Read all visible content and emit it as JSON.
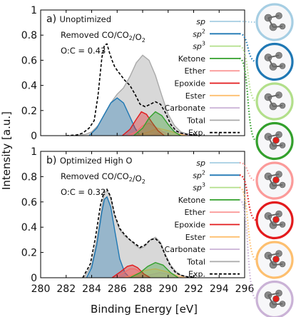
{
  "colors": {
    "sp": "#a6cee3",
    "sp2": "#1f78b4",
    "sp3": "#b2df8a",
    "ketone": "#33a02c",
    "ether": "#fb9a99",
    "epoxide": "#e31a1c",
    "ester": "#fdbf6f",
    "carbonate": "#cab2d6",
    "total": "#a9a9a9",
    "exp": "#000000"
  },
  "legend_labels": [
    "sp",
    "sp2",
    "sp3",
    "Ketone",
    "Ether",
    "Epoxide",
    "Ester",
    "Carbonate",
    "Total",
    "Exp."
  ],
  "chart_data": {
    "type": "area",
    "xlabel": "Binding Energy [eV]",
    "ylabel": "Intensity [a.u.]",
    "xlim": [
      280,
      296
    ],
    "xticks": [
      280,
      282,
      284,
      286,
      288,
      290,
      292,
      294,
      296
    ],
    "grid": false,
    "legend_position": "right",
    "panels": [
      {
        "id": "a",
        "annotation": [
          "a) Unoptimized",
          "Removed CO/CO2/O2",
          "O:C = 0.43"
        ],
        "ylim": [
          0,
          1
        ],
        "yticks": [
          0,
          0.2,
          0.4,
          0.6,
          0.8,
          1
        ],
        "series": [
          {
            "name": "sp2",
            "x": [
              283.8,
              284.4,
              285.0,
              285.5,
              286.0,
              286.5,
              287.0,
              287.4,
              287.8
            ],
            "y": [
              0.0,
              0.06,
              0.17,
              0.26,
              0.3,
              0.26,
              0.15,
              0.06,
              0.0
            ]
          },
          {
            "name": "Epoxide",
            "x": [
              286.4,
              287.0,
              287.5,
              287.9,
              288.3,
              288.7,
              289.2,
              289.7
            ],
            "y": [
              0.0,
              0.05,
              0.13,
              0.19,
              0.17,
              0.11,
              0.04,
              0.0
            ]
          },
          {
            "name": "Ketone",
            "x": [
              287.3,
              288.0,
              288.5,
              289.0,
              289.5,
              290.0,
              290.5,
              291.0
            ],
            "y": [
              0.0,
              0.06,
              0.14,
              0.19,
              0.16,
              0.09,
              0.03,
              0.0
            ]
          },
          {
            "name": "Ether",
            "x": [
              286.8,
              287.5,
              288.0,
              288.5,
              289.0,
              289.6,
              290.2
            ],
            "y": [
              0.0,
              0.03,
              0.08,
              0.1,
              0.07,
              0.03,
              0.0
            ]
          },
          {
            "name": "Ester",
            "x": [
              287.5,
              288.5,
              289.2,
              290.0,
              290.8,
              291.5
            ],
            "y": [
              0.0,
              0.03,
              0.06,
              0.04,
              0.015,
              0.0
            ]
          },
          {
            "name": "Carbonate",
            "x": [
              288.5,
              289.3,
              290.0,
              290.6,
              291.3,
              292.0
            ],
            "y": [
              0.0,
              0.02,
              0.04,
              0.03,
              0.01,
              0.0
            ]
          },
          {
            "name": "Total",
            "x": [
              282.6,
              283.5,
              284.0,
              284.5,
              285.0,
              285.5,
              286.0,
              286.5,
              287.0,
              287.5,
              288.0,
              288.5,
              289.0,
              289.5,
              290.0,
              290.5,
              291.0,
              291.5,
              292.0,
              292.5
            ],
            "y": [
              0.0,
              0.01,
              0.03,
              0.08,
              0.17,
              0.26,
              0.33,
              0.38,
              0.47,
              0.58,
              0.64,
              0.6,
              0.48,
              0.32,
              0.17,
              0.08,
              0.03,
              0.015,
              0.005,
              0.0
            ]
          },
          {
            "name": "Exp.",
            "x": [
              282.0,
              282.8,
              283.3,
              283.8,
              284.2,
              284.5,
              284.8,
              285.0,
              285.2,
              285.4,
              285.6,
              285.8,
              286.0,
              286.3,
              286.6,
              287.0,
              287.4,
              287.8,
              288.2,
              288.6,
              289.0,
              289.4,
              289.8,
              290.2,
              290.6,
              291.0,
              291.5,
              292.0,
              292.5
            ],
            "y": [
              0.0,
              0.005,
              0.02,
              0.06,
              0.12,
              0.32,
              0.62,
              0.72,
              0.73,
              0.66,
              0.6,
              0.55,
              0.52,
              0.48,
              0.44,
              0.4,
              0.33,
              0.25,
              0.23,
              0.25,
              0.27,
              0.25,
              0.18,
              0.09,
              0.04,
              0.02,
              0.01,
              0.005,
              0.0
            ]
          }
        ]
      },
      {
        "id": "b",
        "annotation": [
          "b) Optimized High O",
          "Removed CO/CO2/O2",
          "O:C = 0.32"
        ],
        "ylim": [
          0,
          1
        ],
        "yticks": [
          0,
          0.2,
          0.4,
          0.6,
          0.8,
          1
        ],
        "series": [
          {
            "name": "sp2",
            "x": [
              283.6,
              284.0,
              284.4,
              284.8,
              285.0,
              285.2,
              285.5,
              285.8,
              286.2,
              286.6,
              287.0
            ],
            "y": [
              0.0,
              0.08,
              0.26,
              0.52,
              0.62,
              0.64,
              0.56,
              0.38,
              0.15,
              0.04,
              0.0
            ]
          },
          {
            "name": "Epoxide",
            "x": [
              285.6,
              286.3,
              286.8,
              287.2,
              287.6,
              288.1,
              288.6
            ],
            "y": [
              0.0,
              0.05,
              0.09,
              0.1,
              0.08,
              0.03,
              0.0
            ]
          },
          {
            "name": "Ether",
            "x": [
              285.8,
              286.5,
              287.0,
              287.4,
              287.9,
              288.5
            ],
            "y": [
              0.0,
              0.04,
              0.07,
              0.07,
              0.04,
              0.0
            ]
          },
          {
            "name": "Ketone",
            "x": [
              287.0,
              287.8,
              288.4,
              289.0,
              289.6,
              290.2,
              290.8
            ],
            "y": [
              0.0,
              0.04,
              0.09,
              0.12,
              0.1,
              0.04,
              0.0
            ]
          },
          {
            "name": "Ester",
            "x": [
              286.5,
              287.5,
              288.3,
              289.0,
              289.8,
              290.6,
              291.4
            ],
            "y": [
              0.0,
              0.03,
              0.06,
              0.07,
              0.05,
              0.02,
              0.0
            ]
          },
          {
            "name": "Carbonate",
            "x": [
              287.5,
              288.5,
              289.3,
              290.0,
              290.8,
              291.6
            ],
            "y": [
              0.0,
              0.02,
              0.04,
              0.03,
              0.01,
              0.0
            ]
          },
          {
            "name": "Total",
            "x": [
              283.4,
              284.0,
              284.4,
              284.8,
              285.0,
              285.2,
              285.5,
              285.8,
              286.2,
              286.6,
              287.0,
              287.4,
              287.8,
              288.2,
              288.6,
              289.0,
              289.4,
              289.8,
              290.2,
              290.6,
              291.0,
              291.6,
              292.2
            ],
            "y": [
              0.0,
              0.1,
              0.3,
              0.56,
              0.67,
              0.69,
              0.63,
              0.49,
              0.38,
              0.33,
              0.3,
              0.26,
              0.23,
              0.25,
              0.3,
              0.32,
              0.28,
              0.18,
              0.1,
              0.05,
              0.02,
              0.005,
              0.0
            ]
          },
          {
            "name": "Exp.",
            "x": [
              283.3,
              283.9,
              284.3,
              284.7,
              285.0,
              285.2,
              285.5,
              285.8,
              286.2,
              286.6,
              287.0,
              287.4,
              287.8,
              288.2,
              288.6,
              289.0,
              289.4,
              289.8,
              290.2,
              290.6,
              291.0,
              291.6,
              292.2
            ],
            "y": [
              0.0,
              0.11,
              0.32,
              0.58,
              0.69,
              0.7,
              0.64,
              0.5,
              0.39,
              0.34,
              0.3,
              0.27,
              0.24,
              0.26,
              0.3,
              0.31,
              0.27,
              0.17,
              0.09,
              0.04,
              0.02,
              0.005,
              0.0
            ]
          }
        ]
      }
    ]
  }
}
